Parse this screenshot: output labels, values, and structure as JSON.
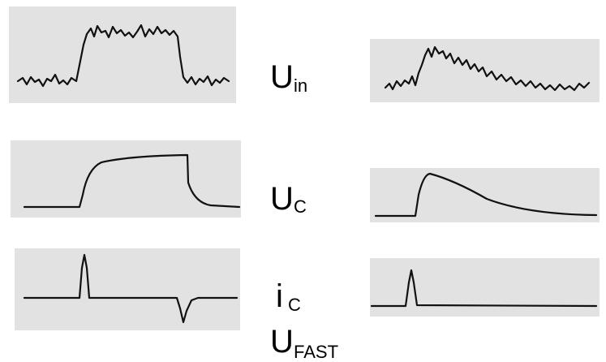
{
  "labels": [
    {
      "main": "U",
      "sub": "in"
    },
    {
      "main": "U",
      "sub": "C"
    },
    {
      "main": "i",
      "sub": "C"
    },
    {
      "main": "U",
      "sub": "FAST"
    }
  ]
}
